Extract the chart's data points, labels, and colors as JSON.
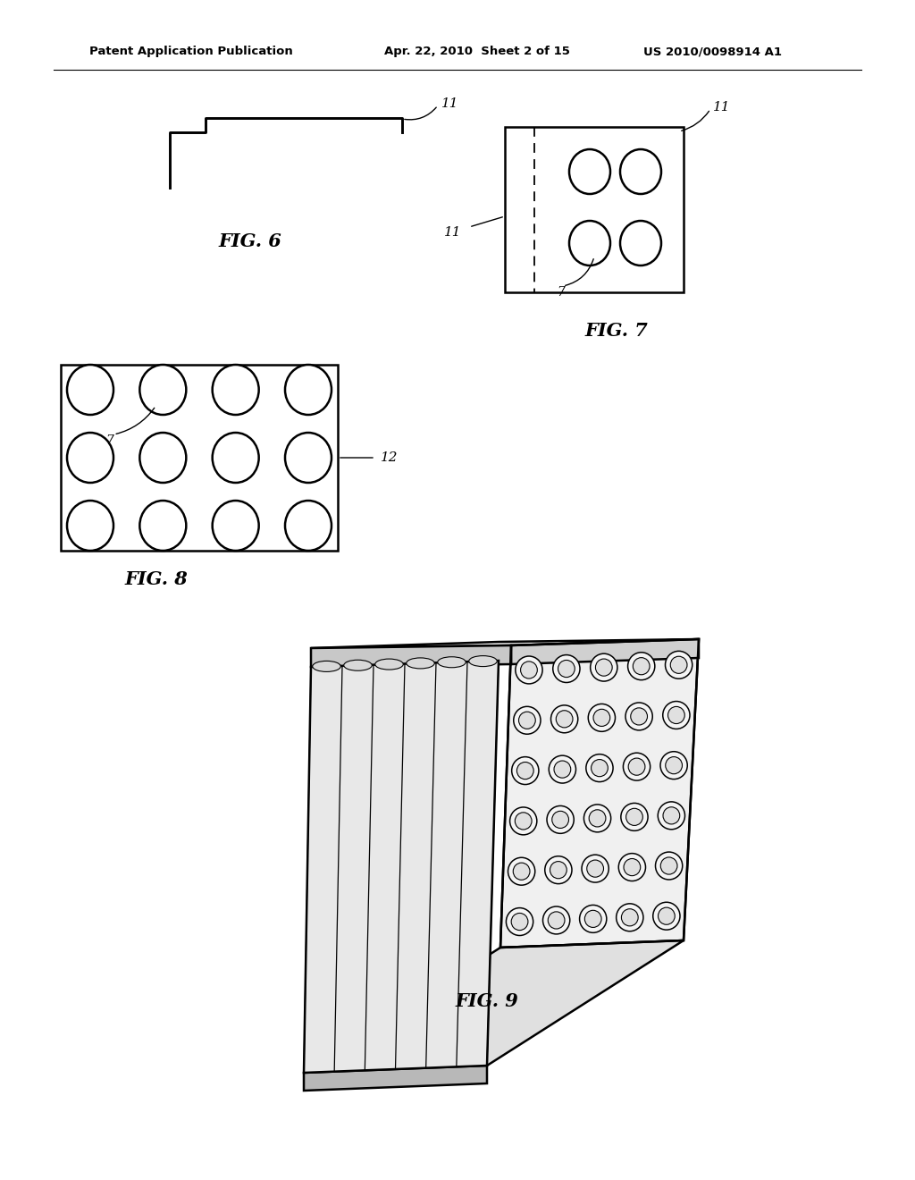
{
  "background_color": "#ffffff",
  "header_text_left": "Patent Application Publication",
  "header_text_mid": "Apr. 22, 2010  Sheet 2 of 15",
  "header_text_right": "US 2010/0098914 A1",
  "fig6_label": "FIG. 6",
  "fig7_label": "FIG. 7",
  "fig8_label": "FIG. 8",
  "fig9_label": "FIG. 9",
  "label_11": "11",
  "label_7": "7",
  "label_12": "12"
}
